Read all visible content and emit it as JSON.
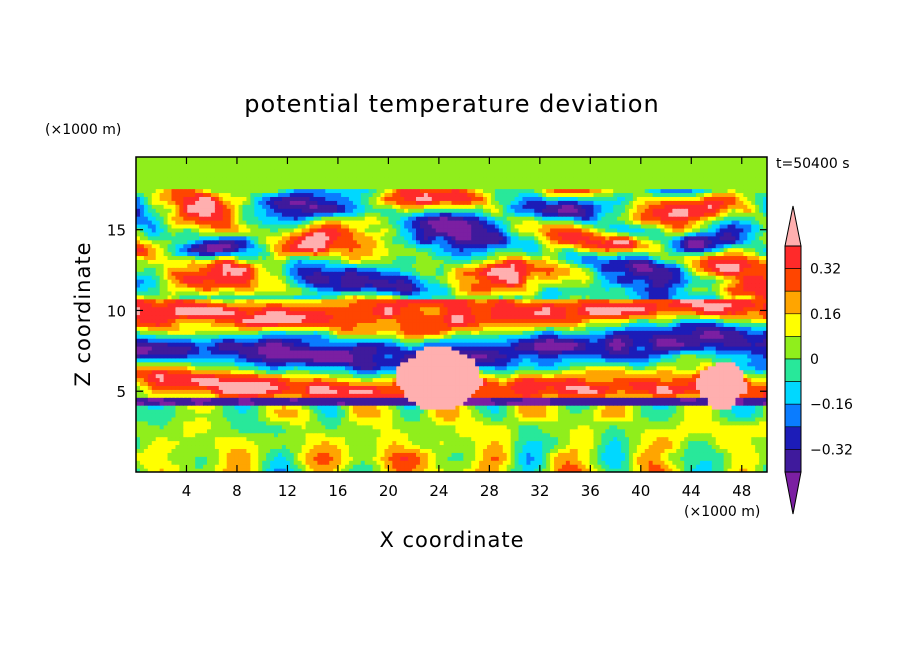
{
  "chart_data": {
    "type": "heatmap",
    "title": "potential temperature deviation",
    "xlabel": "X coordinate",
    "ylabel": "Z coordinate",
    "x_unit": "(×1000 m)",
    "y_unit": "(×1000 m)",
    "time_label": "t=50400 s",
    "xlim": [
      0,
      50
    ],
    "ylim": [
      0,
      19.5
    ],
    "x_ticks": [
      4,
      8,
      12,
      16,
      20,
      24,
      28,
      32,
      36,
      40,
      44,
      48
    ],
    "x_tick_labels": [
      "4",
      "8",
      "12",
      "16",
      "20",
      "24",
      "28",
      "32",
      "36",
      "40",
      "44",
      "48"
    ],
    "y_ticks": [
      5,
      10,
      15
    ],
    "y_tick_labels": [
      "5",
      "10",
      "15"
    ],
    "colorbar": {
      "levels": [
        -0.4,
        -0.32,
        -0.24,
        -0.16,
        -0.08,
        0,
        0.08,
        0.16,
        0.24,
        0.32,
        0.4
      ],
      "labeled_levels": [
        0.32,
        0.16,
        0,
        -0.16,
        -0.32
      ],
      "labels": [
        "0.32",
        "0.16",
        "0",
        "−0.16",
        "−0.32"
      ],
      "colors": [
        "#7b1fa2",
        "#3f1a9c",
        "#1c1cb8",
        "#0a7cff",
        "#00d8ff",
        "#28e89a",
        "#90ee1c",
        "#ffff00",
        "#ffa500",
        "#ff4500",
        "#ff2a2a",
        "#ffafaf"
      ]
    },
    "field_model": {
      "layers": [
        {
          "z0": 4.1,
          "z1": 10.8,
          "regime": "banded"
        },
        {
          "z0": 10.8,
          "z1": 17.5,
          "regime": "cellular"
        },
        {
          "z0": 17.5,
          "z1": 19.5,
          "regime": "upper"
        }
      ],
      "warm_plumes": [
        {
          "x": 24.0,
          "z0": 4.0,
          "z1": 7.8,
          "width": 3.2
        },
        {
          "x": 46.5,
          "z0": 4.0,
          "z1": 6.8,
          "width": 1.8
        }
      ],
      "cold_base_z": 4.1
    }
  }
}
